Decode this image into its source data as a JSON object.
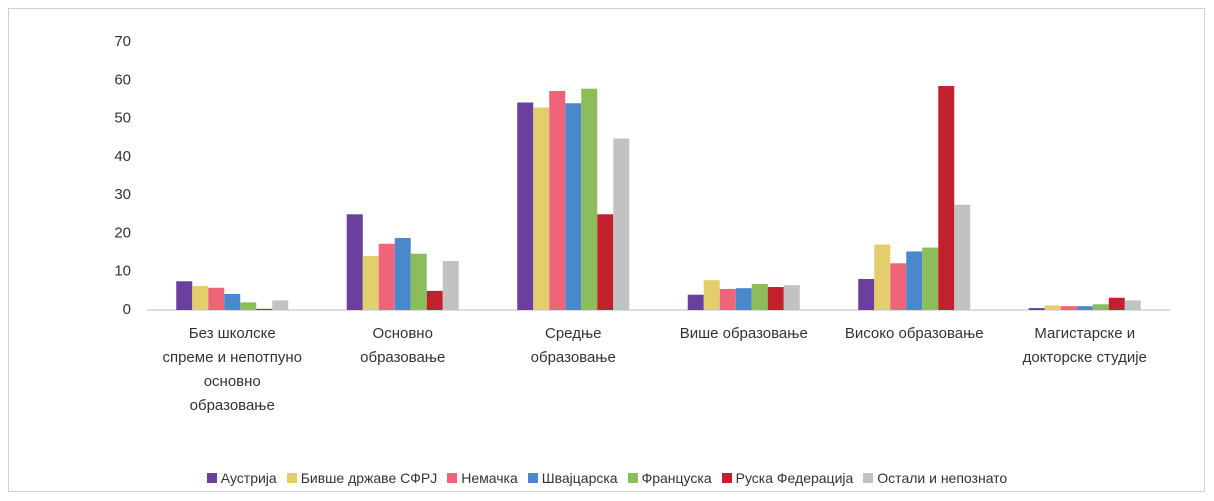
{
  "chart_data": {
    "type": "bar",
    "categories": [
      "Без школске спреме и непотпуно основно образовање",
      "Основно образовање",
      "Средње образовање",
      "Више образовање",
      "Високо образовање",
      "Магистарске и докторске студије"
    ],
    "series": [
      {
        "name": "Аустрија",
        "color": "#6a3f9e",
        "values": [
          7.5,
          25,
          54.2,
          4,
          8.1,
          0.5
        ]
      },
      {
        "name": "Бивше државе СФРЈ",
        "color": "#e2cf6c",
        "values": [
          6.3,
          14.1,
          52.9,
          7.8,
          17.1,
          1.2
        ]
      },
      {
        "name": "Немачка",
        "color": "#f0647a",
        "values": [
          5.8,
          17.3,
          57.2,
          5.5,
          12.2,
          1
        ]
      },
      {
        "name": "Швајцарска",
        "color": "#4a88cc",
        "values": [
          4.2,
          18.8,
          54,
          5.7,
          15.3,
          1
        ]
      },
      {
        "name": "Француска",
        "color": "#8dbd5b",
        "values": [
          2,
          14.7,
          57.8,
          6.8,
          16.3,
          1.5
        ]
      },
      {
        "name": "Руска Федерација",
        "color": "#c1202c",
        "values": [
          0.3,
          5,
          25,
          6,
          58.5,
          3.2
        ]
      },
      {
        "name": "Остали и непознато",
        "color": "#c2c2c2",
        "values": [
          2.5,
          12.8,
          44.8,
          6.5,
          27.5,
          2.5
        ]
      }
    ],
    "ylim": [
      0,
      70
    ],
    "yticks": [
      0,
      10,
      20,
      30,
      40,
      50,
      60,
      70
    ],
    "grid": false,
    "legend": "bottom"
  }
}
